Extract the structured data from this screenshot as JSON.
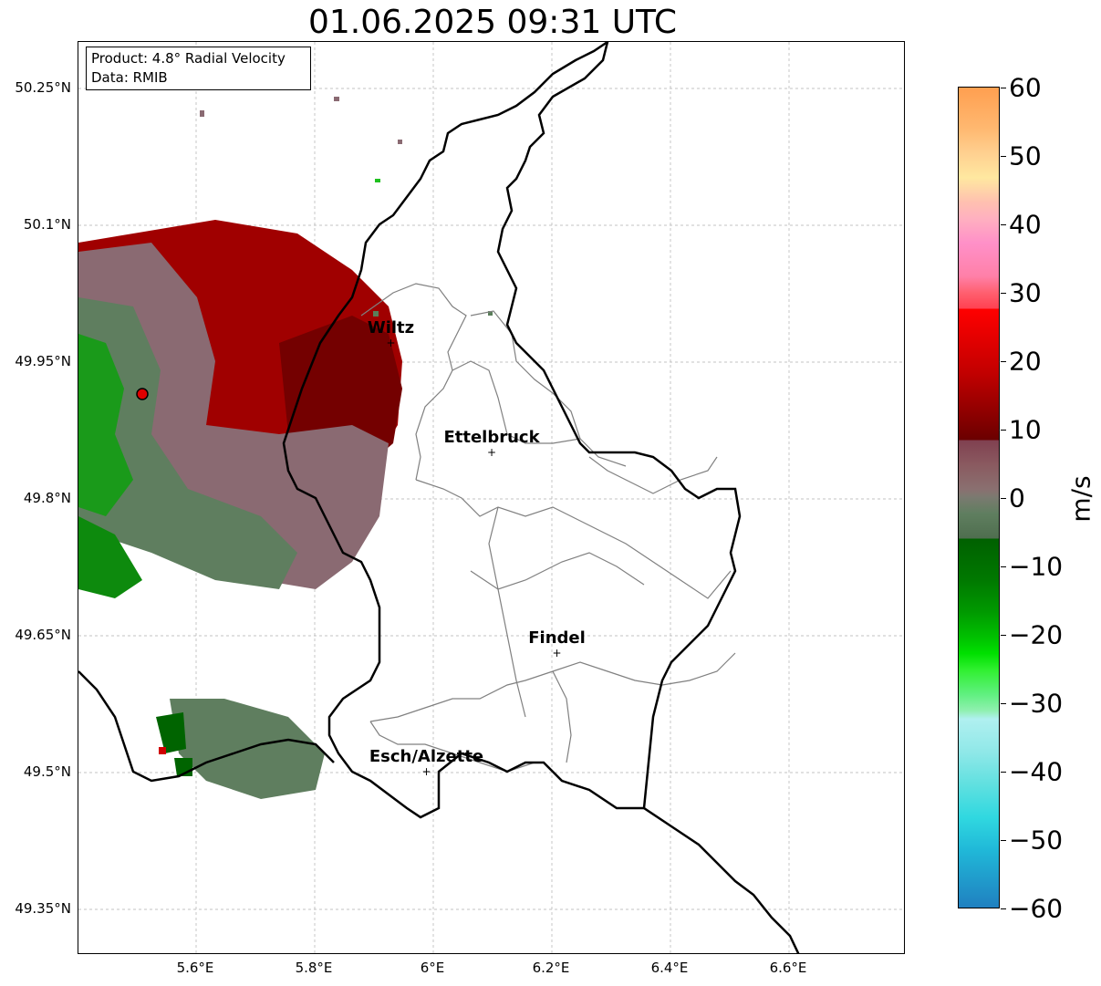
{
  "title": "01.06.2025 09:31 UTC",
  "info_box": {
    "product": "Product: 4.8° Radial Velocity",
    "data": "Data: RMIB"
  },
  "latitude_labels": [
    "50.25°N",
    "50.1°N",
    "49.95°N",
    "49.8°N",
    "49.65°N",
    "49.5°N",
    "49.35°N"
  ],
  "longitude_labels": [
    "5.6°E",
    "5.8°E",
    "6°E",
    "6.2°E",
    "6.4°E",
    "6.6°E"
  ],
  "cities": [
    {
      "name": "Wiltz",
      "lon": 5.93,
      "lat": 49.97
    },
    {
      "name": "Ettelbruck",
      "lon": 6.1,
      "lat": 49.85
    },
    {
      "name": "Findel",
      "lon": 6.21,
      "lat": 49.63
    },
    {
      "name": "Esch/Alzette",
      "lon": 5.99,
      "lat": 49.5
    }
  ],
  "radar_site": {
    "lon": 5.505,
    "lat": 49.915,
    "color": "#e00000"
  },
  "colorbar": {
    "unit": "m/s",
    "ticks": [
      "60",
      "50",
      "40",
      "30",
      "20",
      "10",
      "0",
      "−10",
      "−20",
      "−30",
      "−40",
      "−50",
      "−60"
    ],
    "range": [
      -60,
      60
    ]
  },
  "map_extent": {
    "lon": [
      5.4,
      6.8
    ],
    "lat": [
      49.3,
      50.3
    ]
  },
  "colors": {
    "inbound_strong": "#00c000",
    "inbound_weak": "#5a7e5a",
    "near_zero": "#8a6a72",
    "outbound": "#a00000",
    "outbound_strong": "#700000",
    "border": "#000000",
    "canton_border": "#808080",
    "grid": "#b0b0b0"
  }
}
